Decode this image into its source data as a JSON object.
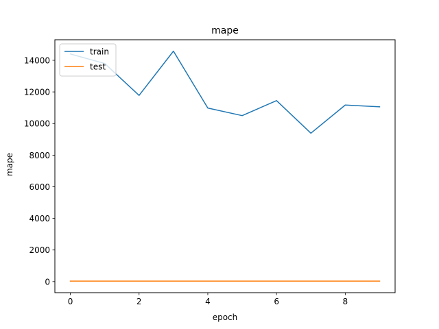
{
  "chart_data": {
    "type": "line",
    "title": "mape",
    "xlabel": "epoch",
    "ylabel": "mape",
    "xlim": [
      -0.45,
      9.45
    ],
    "ylim": [
      -700,
      15300
    ],
    "xticks": [
      0,
      2,
      4,
      6,
      8
    ],
    "yticks": [
      0,
      2000,
      4000,
      6000,
      8000,
      10000,
      12000,
      14000
    ],
    "grid": false,
    "legend_position": "upper left",
    "x": [
      0,
      1,
      2,
      3,
      4,
      5,
      6,
      7,
      8,
      9
    ],
    "series": [
      {
        "name": "train",
        "color": "#1f77b4",
        "values": [
          14400,
          13800,
          11780,
          14580,
          10980,
          10500,
          11450,
          9390,
          11170,
          11060
        ]
      },
      {
        "name": "test",
        "color": "#ff7f0e",
        "values": [
          30,
          30,
          30,
          30,
          30,
          30,
          30,
          30,
          30,
          30
        ]
      }
    ]
  }
}
